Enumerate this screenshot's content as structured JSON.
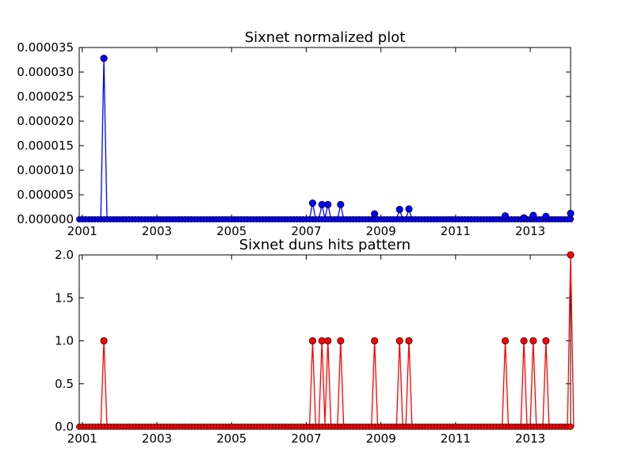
{
  "chart_data": [
    {
      "type": "line",
      "title": "Sixnet normalized plot",
      "xlabel": "",
      "ylabel": "",
      "xlim": [
        2000.92,
        2014.08
      ],
      "ylim": [
        0,
        3.5e-05
      ],
      "x_ticks": [
        "2001",
        "2003",
        "2005",
        "2007",
        "2009",
        "2011",
        "2013"
      ],
      "x_tick_values": [
        2001,
        2003,
        2005,
        2007,
        2009,
        2011,
        2013
      ],
      "y_ticks": [
        "0.000000",
        "0.000005",
        "0.000010",
        "0.000015",
        "0.000020",
        "0.000025",
        "0.000030",
        "0.000035"
      ],
      "y_tick_values": [
        0,
        5e-06,
        1e-05,
        1.5e-05,
        2e-05,
        2.5e-05,
        3e-05,
        3.5e-05
      ],
      "grid": false,
      "color": "#0000ff",
      "marker": "circle",
      "baseline": {
        "x_start": 2000.92,
        "x_end": 2014.08,
        "y": 0
      },
      "points": [
        {
          "x": 2001.58,
          "y": 3.28e-05
        },
        {
          "x": 2007.17,
          "y": 3.3e-06
        },
        {
          "x": 2007.42,
          "y": 3e-06
        },
        {
          "x": 2007.58,
          "y": 3e-06
        },
        {
          "x": 2007.92,
          "y": 3e-06
        },
        {
          "x": 2008.83,
          "y": 1.1e-06
        },
        {
          "x": 2009.5,
          "y": 2e-06
        },
        {
          "x": 2009.75,
          "y": 2.1e-06
        },
        {
          "x": 2012.33,
          "y": 7e-07
        },
        {
          "x": 2012.83,
          "y": 3e-07
        },
        {
          "x": 2013.08,
          "y": 8e-07
        },
        {
          "x": 2013.42,
          "y": 6e-07
        },
        {
          "x": 2014.08,
          "y": 1.2e-06
        }
      ]
    },
    {
      "type": "line",
      "title": "Sixnet duns hits pattern",
      "xlabel": "",
      "ylabel": "",
      "xlim": [
        2000.92,
        2014.08
      ],
      "ylim": [
        0,
        2.0
      ],
      "x_ticks": [
        "2001",
        "2003",
        "2005",
        "2007",
        "2009",
        "2011",
        "2013"
      ],
      "x_tick_values": [
        2001,
        2003,
        2005,
        2007,
        2009,
        2011,
        2013
      ],
      "y_ticks": [
        "0.0",
        "0.5",
        "1.0",
        "1.5",
        "2.0"
      ],
      "y_tick_values": [
        0,
        0.5,
        1.0,
        1.5,
        2.0
      ],
      "grid": false,
      "color": "#ff0000",
      "marker": "circle",
      "baseline": {
        "x_start": 2000.92,
        "x_end": 2014.08,
        "y": 0
      },
      "points": [
        {
          "x": 2001.58,
          "y": 1
        },
        {
          "x": 2007.17,
          "y": 1
        },
        {
          "x": 2007.42,
          "y": 1
        },
        {
          "x": 2007.58,
          "y": 1
        },
        {
          "x": 2007.92,
          "y": 1
        },
        {
          "x": 2008.83,
          "y": 1
        },
        {
          "x": 2009.5,
          "y": 1
        },
        {
          "x": 2009.75,
          "y": 1
        },
        {
          "x": 2012.33,
          "y": 1
        },
        {
          "x": 2012.83,
          "y": 1
        },
        {
          "x": 2013.08,
          "y": 1
        },
        {
          "x": 2013.42,
          "y": 1
        },
        {
          "x": 2014.08,
          "y": 2
        }
      ]
    }
  ]
}
